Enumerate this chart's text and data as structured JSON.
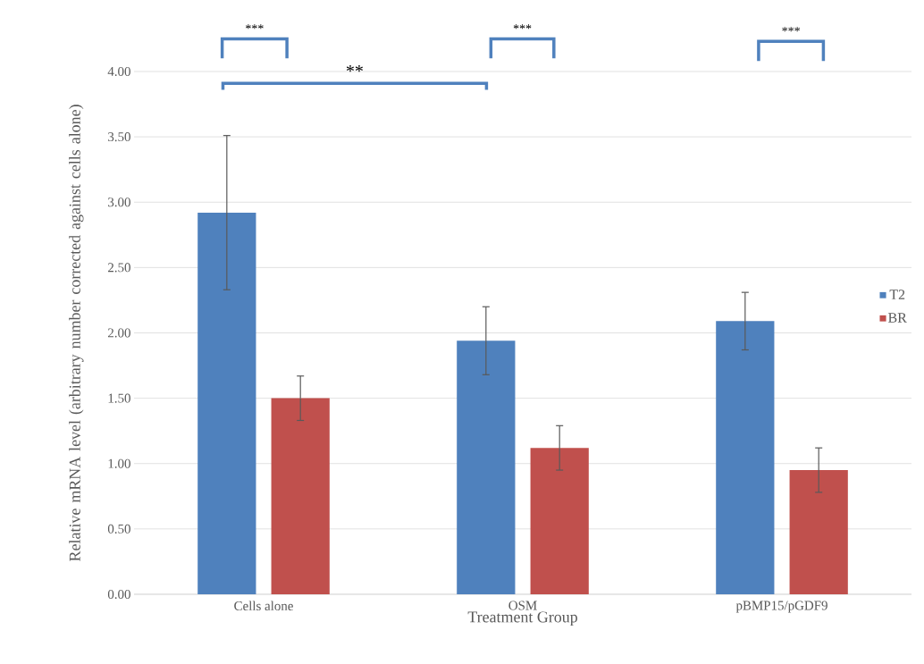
{
  "chart_data": {
    "type": "bar",
    "xlabel": "Treatment Group",
    "ylabel": "Relative mRNA level (arbitrary number corrected against cells alone)",
    "categories": [
      "Cells alone",
      "OSM",
      "pBMP15/pGDF9"
    ],
    "series": [
      {
        "name": "T2",
        "color": "#4f81bd",
        "values": [
          2.92,
          1.94,
          2.09
        ],
        "errors": [
          0.59,
          0.26,
          0.22
        ]
      },
      {
        "name": "BR",
        "color": "#c0504d",
        "values": [
          1.5,
          1.12,
          0.95
        ],
        "errors": [
          0.17,
          0.17,
          0.17
        ]
      }
    ],
    "ylim": [
      0,
      4
    ],
    "yticks": [
      {
        "value": 0,
        "label": "0.00"
      },
      {
        "value": 0.5,
        "label": "0.50"
      },
      {
        "value": 1,
        "label": "1.00"
      },
      {
        "value": 1.5,
        "label": "1.50"
      },
      {
        "value": 2,
        "label": "2.00"
      },
      {
        "value": 2.5,
        "label": "2.50"
      },
      {
        "value": 3,
        "label": "3.00"
      },
      {
        "value": 3.5,
        "label": "3.50"
      },
      {
        "value": 4,
        "label": "4.00"
      }
    ],
    "grid": "y",
    "legend": "right",
    "annotations": [
      "***",
      "***",
      "***",
      "**"
    ]
  }
}
